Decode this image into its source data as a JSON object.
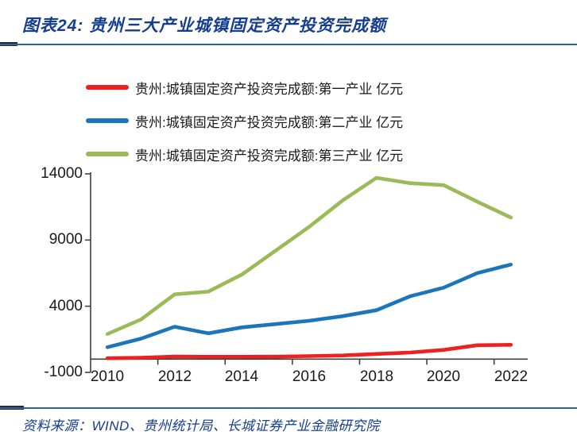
{
  "header": {
    "title": "图表24:  贵州三大产业城镇固定资产投资完成额"
  },
  "footer": {
    "source": "资料来源：WIND、贵州统计局、长城证券产业金融研究院"
  },
  "colors": {
    "title_blue": "#153E8F",
    "rule_blue": "#2862A8",
    "axis": "#404040",
    "series_red": "#EE2020",
    "series_blue": "#1B75BB",
    "series_green": "#9BBB59"
  },
  "chart_data": {
    "type": "line",
    "title": "贵州三大产业城镇固定资产投资完成额",
    "xlabel": "",
    "ylabel": "",
    "grid": false,
    "legend_position": "top",
    "ylim": [
      -1000,
      14000
    ],
    "y_ticks": [
      "14000",
      "9000",
      "4000",
      "-1000"
    ],
    "y_tick_values": [
      14000,
      9000,
      4000,
      -1000
    ],
    "x_tick_labels": [
      "2010",
      "2012",
      "2014",
      "2016",
      "2018",
      "2020",
      "2022"
    ],
    "x": [
      2010,
      2011,
      2012,
      2013,
      2014,
      2015,
      2016,
      2017,
      2018,
      2019,
      2020,
      2021,
      2022
    ],
    "series": [
      {
        "name": "贵州:城镇固定资产投资完成额:第一产业 亿元",
        "color": "#EE2020",
        "values": [
          70,
          110,
          200,
          180,
          180,
          190,
          230,
          280,
          390,
          500,
          700,
          1050,
          1080
        ]
      },
      {
        "name": "贵州:城镇固定资产投资完成额:第二产业 亿元",
        "color": "#1B75BB",
        "values": [
          900,
          1550,
          2450,
          1950,
          2400,
          2650,
          2900,
          3250,
          3700,
          4750,
          5400,
          6500,
          7150
        ]
      },
      {
        "name": "贵州:城镇固定资产投资完成额:第三产业 亿元",
        "color": "#9BBB59",
        "values": [
          1900,
          3000,
          4900,
          5100,
          6400,
          8200,
          10000,
          12000,
          13700,
          13300,
          13150,
          11900,
          10700
        ]
      }
    ]
  }
}
